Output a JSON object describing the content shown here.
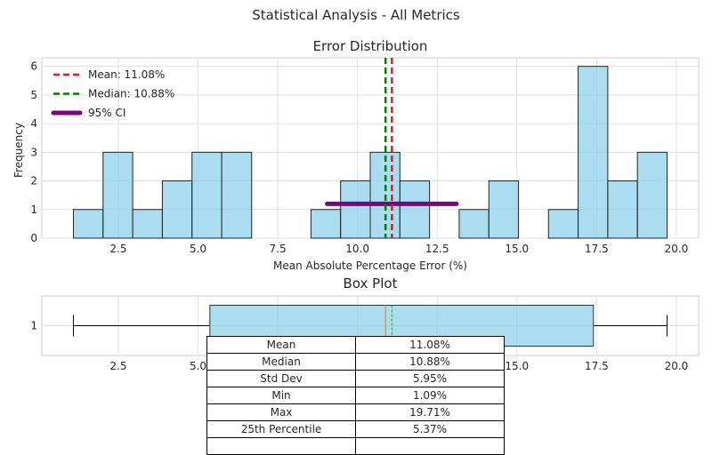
{
  "suptitle": "Statistical Analysis - All Metrics",
  "chart_data": [
    {
      "type": "histogram",
      "title": "Error Distribution",
      "xlabel": "Mean Absolute Percentage Error (%)",
      "ylabel": "Frequency",
      "xlim": [
        0.1,
        20.7
      ],
      "ylim": [
        0,
        6.3
      ],
      "xticks": [
        2.5,
        5.0,
        7.5,
        10.0,
        12.5,
        15.0,
        17.5,
        20.0
      ],
      "yticks": [
        0,
        1,
        2,
        3,
        4,
        5,
        6
      ],
      "bin_edges": [
        1.09,
        2.02,
        2.95,
        3.88,
        4.81,
        5.74,
        6.68,
        7.61,
        8.54,
        9.47,
        10.4,
        11.33,
        12.26,
        13.19,
        14.12,
        15.05,
        15.99,
        16.92,
        17.85,
        18.78,
        19.71
      ],
      "counts": [
        1,
        3,
        1,
        2,
        3,
        3,
        0,
        0,
        1,
        2,
        3,
        2,
        0,
        1,
        2,
        0,
        1,
        6,
        2,
        3
      ],
      "bar_color": "#87ceeb",
      "mean_line": {
        "value": 11.08,
        "label": "Mean: 11.08%",
        "color": "#e41a1c"
      },
      "median_line": {
        "value": 10.88,
        "label": "Median: 10.88%",
        "color": "#008000"
      },
      "ci": {
        "low": 9.05,
        "high": 13.1,
        "y": 1.2,
        "label": "95% CI",
        "color": "#800080"
      },
      "legend_position": "upper left",
      "grid": true
    },
    {
      "type": "boxplot",
      "title": "Box Plot",
      "orientation": "horizontal",
      "xlim": [
        0.1,
        20.7
      ],
      "xticks": [
        2.5,
        5.0,
        7.5,
        10.0,
        12.5,
        15.0,
        17.5,
        20.0
      ],
      "ytick_label": "1",
      "whisker_low": 1.09,
      "q1": 5.37,
      "median": 10.88,
      "mean": 11.08,
      "q3": 17.4,
      "whisker_high": 19.71,
      "box_color": "#87ceeb",
      "median_color": "#ff7f0e",
      "mean_color": "#2ca02c",
      "grid": true
    }
  ],
  "stats_table": [
    [
      "Mean",
      "11.08%"
    ],
    [
      "Median",
      "10.88%"
    ],
    [
      "Std Dev",
      "5.95%"
    ],
    [
      "Min",
      "1.09%"
    ],
    [
      "Max",
      "19.71%"
    ],
    [
      "25th Percentile",
      "5.37%"
    ]
  ]
}
